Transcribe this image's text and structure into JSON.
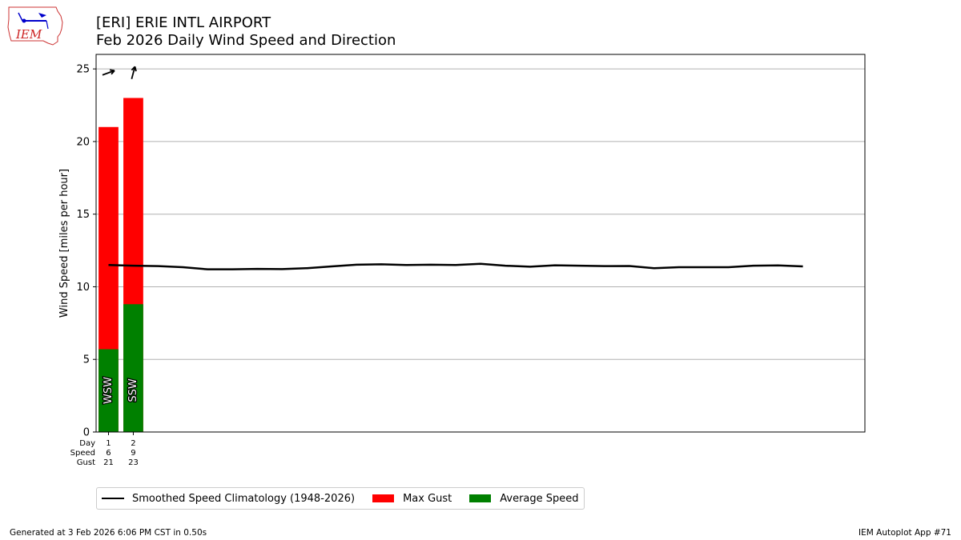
{
  "header": {
    "logo_text": "IEM",
    "title_line1": "[ERI] ERIE INTL AIRPORT",
    "title_line2": "Feb 2026 Daily Wind Speed and Direction"
  },
  "chart_data": {
    "type": "bar",
    "stacked_overlay": true,
    "title": "[ERI] ERIE INTL AIRPORT\nFeb 2026 Daily Wind Speed and Direction",
    "ylabel": "Wind Speed [miles per hour]",
    "xlabel": "",
    "ylim": [
      0,
      26
    ],
    "xlim": [
      0.5,
      31.5
    ],
    "yticks": [
      0,
      5,
      10,
      15,
      20,
      25
    ],
    "grid": "horizontal",
    "legend_position": "bottom-left",
    "colors": {
      "gust": "#ff0000",
      "average": "#008000",
      "climatology": "#000000"
    },
    "row_labels": [
      "Day",
      "Speed",
      "Gust"
    ],
    "days": [
      1,
      2
    ],
    "series": [
      {
        "name": "Average Speed",
        "values": [
          5.7,
          8.8
        ],
        "labels": [
          "6",
          "9"
        ]
      },
      {
        "name": "Max Gust",
        "values": [
          21,
          23
        ],
        "labels": [
          "21",
          "23"
        ]
      }
    ],
    "direction_labels": [
      "WSW",
      "SSW"
    ],
    "direction_arrows_deg_from_north": [
      70,
      15
    ],
    "climatology": {
      "name": "Smoothed Speed Climatology (1948-2026)",
      "x": [
        1,
        2,
        3,
        4,
        5,
        6,
        7,
        8,
        9,
        10,
        11,
        12,
        13,
        14,
        15,
        16,
        17,
        18,
        19,
        20,
        21,
        22,
        23,
        24,
        25,
        26,
        27,
        28,
        29
      ],
      "values": [
        11.5,
        11.45,
        11.42,
        11.35,
        11.2,
        11.2,
        11.23,
        11.22,
        11.28,
        11.4,
        11.52,
        11.55,
        11.5,
        11.52,
        11.5,
        11.58,
        11.45,
        11.38,
        11.48,
        11.45,
        11.42,
        11.43,
        11.28,
        11.35,
        11.35,
        11.35,
        11.45,
        11.47,
        11.4
      ]
    }
  },
  "legend": {
    "items": [
      {
        "label": "Smoothed Speed Climatology (1948-2026)",
        "color": "#000000",
        "kind": "line"
      },
      {
        "label": "Max Gust",
        "color": "#ff0000",
        "kind": "box"
      },
      {
        "label": "Average Speed",
        "color": "#008000",
        "kind": "box"
      }
    ]
  },
  "footer": {
    "left": "Generated at 3 Feb 2026 6:06 PM CST in 0.50s",
    "right": "IEM Autoplot App #71"
  }
}
